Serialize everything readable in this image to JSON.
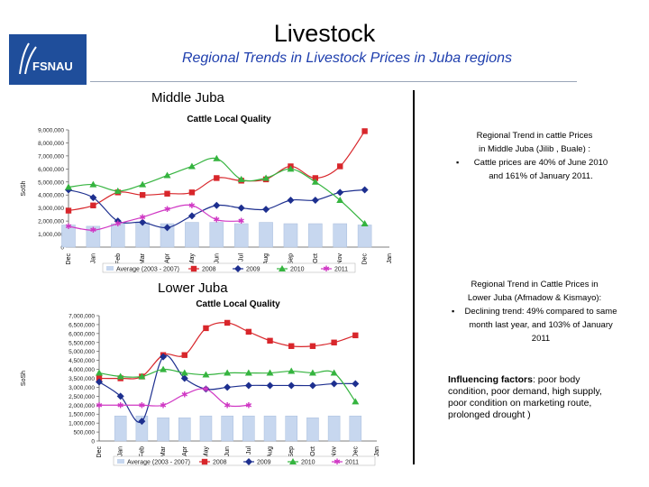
{
  "header": {
    "title": "Livestock",
    "subtitle": "Regional Trends in Livestock Prices in Juba regions",
    "logo_text": "FSNAU"
  },
  "sections": {
    "middle": {
      "label": "Middle Juba",
      "note_head_1": "Regional Trend in cattle Prices",
      "note_head_2": "in Middle Juba (Jilib , Buale) :",
      "note_bullet": "Cattle prices are 40% of June 2010 and 161% of January 2011."
    },
    "lower": {
      "label": "Lower Juba",
      "note_head_1": "Regional Trend in Cattle Prices in",
      "note_head_2": "Lower Juba (Afmadow & Kismayo):",
      "note_bullet": "Declining trend: 49% compared to same month last year, and 103% of January 2011"
    },
    "influence_label": "Influencing factors",
    "influence_text": ": poor body condition, poor demand, high supply,  poor condition on marketing route, prolonged drought )"
  },
  "chart_data": [
    {
      "type": "line",
      "title": "Cattle Local Quality",
      "ylabel": "SoSh",
      "ylim": [
        0,
        9000000
      ],
      "yticks": [
        "0",
        "1,000,000",
        "2,000,000",
        "3,000,000",
        "4,000,000",
        "5,000,000",
        "6,000,000",
        "7,000,000",
        "8,000,000",
        "9,000,000"
      ],
      "categories": [
        "Dec",
        "Jan",
        "Feb",
        "Mar",
        "Apr",
        "May",
        "Jun",
        "Jul",
        "Aug",
        "Sep",
        "Oct",
        "Nov",
        "Dec",
        "Jan"
      ],
      "legend": "bottom",
      "bars": {
        "name": "Average (2003 - 2007)",
        "color": "#c7d7ef",
        "values": [
          1700000,
          1600000,
          1800000,
          1900000,
          1800000,
          1900000,
          1900000,
          1800000,
          1900000,
          1800000,
          1800000,
          1800000,
          1700000,
          null
        ]
      },
      "series": [
        {
          "name": "2008",
          "color": "#d8262b",
          "marker": "square",
          "values": [
            2800000,
            3200000,
            4200000,
            4000000,
            4100000,
            4200000,
            5300000,
            5100000,
            5200000,
            6200000,
            5300000,
            6200000,
            8900000,
            null
          ]
        },
        {
          "name": "2009",
          "color": "#1d2f8f",
          "marker": "diamond",
          "values": [
            4400000,
            3800000,
            2000000,
            1900000,
            1500000,
            2400000,
            3200000,
            3000000,
            2900000,
            3600000,
            3600000,
            4200000,
            4400000,
            null
          ]
        },
        {
          "name": "2010",
          "color": "#35b43f",
          "marker": "triangle",
          "values": [
            4600000,
            4800000,
            4300000,
            4800000,
            5500000,
            6200000,
            6800000,
            5200000,
            5300000,
            6000000,
            5000000,
            3600000,
            1800000,
            null
          ]
        },
        {
          "name": "2011",
          "color": "#d038c4",
          "marker": "star",
          "values": [
            1600000,
            1300000,
            1800000,
            2300000,
            2900000,
            3200000,
            2100000,
            2000000,
            null,
            null,
            null,
            null,
            null,
            null
          ]
        }
      ]
    },
    {
      "type": "line",
      "title": "Cattle Local Quality",
      "ylabel": "SoSh",
      "ylim": [
        0,
        7000000
      ],
      "yticks": [
        "0",
        "500,000",
        "1,000,000",
        "1,500,000",
        "2,000,000",
        "2,500,000",
        "3,000,000",
        "3,500,000",
        "4,000,000",
        "4,500,000",
        "5,000,000",
        "5,500,000",
        "6,000,000",
        "6,500,000",
        "7,000,000"
      ],
      "categories": [
        "Dec",
        "Jan",
        "Feb",
        "Mar",
        "Apr",
        "May",
        "Jun",
        "Jul",
        "Aug",
        "Sep",
        "Oct",
        "Nov",
        "Dec",
        "Jan"
      ],
      "legend": "bottom",
      "bars": {
        "name": "Average (2003 - 2007)",
        "color": "#c7d7ef",
        "values": [
          null,
          1400000,
          1400000,
          1300000,
          1300000,
          1400000,
          1400000,
          1400000,
          1400000,
          1400000,
          1300000,
          1400000,
          1400000,
          null
        ]
      },
      "series": [
        {
          "name": "2008",
          "color": "#d8262b",
          "marker": "square",
          "values": [
            3500000,
            3500000,
            3600000,
            4800000,
            4800000,
            6300000,
            6600000,
            6100000,
            5600000,
            5300000,
            5300000,
            5500000,
            5900000,
            null
          ]
        },
        {
          "name": "2009",
          "color": "#1d2f8f",
          "marker": "diamond",
          "values": [
            3300000,
            2500000,
            1100000,
            4700000,
            3500000,
            2900000,
            3000000,
            3100000,
            3100000,
            3100000,
            3100000,
            3200000,
            3200000,
            null
          ]
        },
        {
          "name": "2010",
          "color": "#35b43f",
          "marker": "triangle",
          "values": [
            3800000,
            3600000,
            3600000,
            4000000,
            3800000,
            3700000,
            3800000,
            3800000,
            3800000,
            3900000,
            3800000,
            3800000,
            2200000,
            null
          ]
        },
        {
          "name": "2011",
          "color": "#d038c4",
          "marker": "star",
          "values": [
            2000000,
            2000000,
            2000000,
            2000000,
            2600000,
            2900000,
            2000000,
            2000000,
            null,
            null,
            null,
            null,
            null,
            null
          ]
        }
      ]
    }
  ]
}
